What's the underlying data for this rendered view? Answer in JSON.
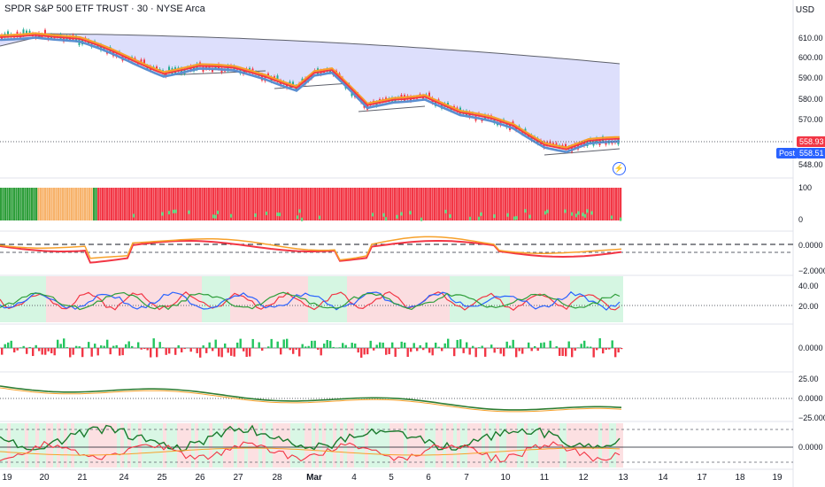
{
  "header": {
    "title": "SPDR S&P 500 ETF TRUST · 30 · NYSE Arca",
    "currency": "USD"
  },
  "price_axis": {
    "labels": [
      "610.00",
      "600.00",
      "590.00",
      "580.00",
      "570.00",
      "558.93",
      "558.51",
      "548.00"
    ]
  },
  "price_tags": {
    "last": "558.93",
    "post_label": "Post",
    "post_value": "558.51"
  },
  "panes": [
    {
      "name": "pane-1",
      "labels": [
        "100",
        "0"
      ]
    },
    {
      "name": "pane-2",
      "labels": [
        "0.0000",
        "−2.0000"
      ]
    },
    {
      "name": "pane-3",
      "labels": [
        "40.00",
        "20.00"
      ]
    },
    {
      "name": "pane-4",
      "labels": [
        "0.0000"
      ]
    },
    {
      "name": "pane-5",
      "labels": [
        "25.00",
        "0.0000",
        "−25.000"
      ]
    },
    {
      "name": "pane-6",
      "labels": [
        "0.0000"
      ]
    }
  ],
  "time_axis": [
    "19",
    "20",
    "21",
    "24",
    "25",
    "26",
    "27",
    "28",
    "Mar",
    "4",
    "5",
    "6",
    "7",
    "10",
    "11",
    "12",
    "13",
    "14",
    "17",
    "18",
    "19"
  ],
  "icons": {
    "alert": "lightning-icon"
  },
  "colors": {
    "up": "#22ab94",
    "down": "#f23645",
    "accent": "#2962ff",
    "cloud": "#d1d4fb",
    "orange": "#f7a12b",
    "green": "#2e9e3a"
  }
}
